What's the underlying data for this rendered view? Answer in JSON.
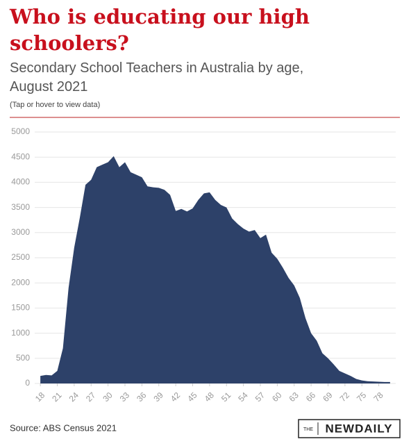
{
  "chart_data": {
    "type": "area",
    "title": "Who is educating our high schoolers?",
    "subtitle": "Secondary School Teachers in Australia by age, August 2021",
    "note": "(Tap or hover to view data)",
    "source": "Source: ABS Census 2021",
    "logo": [
      "THE",
      "NEWDAILY"
    ],
    "x": [
      18,
      19,
      20,
      21,
      22,
      23,
      24,
      25,
      26,
      27,
      28,
      29,
      30,
      31,
      32,
      33,
      34,
      35,
      36,
      37,
      38,
      39,
      40,
      41,
      42,
      43,
      44,
      45,
      46,
      47,
      48,
      49,
      50,
      51,
      52,
      53,
      54,
      55,
      56,
      57,
      58,
      59,
      60,
      61,
      62,
      63,
      64,
      65,
      66,
      67,
      68,
      69,
      70,
      71,
      72,
      73,
      74,
      75,
      76,
      77,
      78,
      79,
      80
    ],
    "series": [
      {
        "name": "Secondary School Teachers",
        "color": "#2d4169",
        "values": [
          150,
          170,
          160,
          250,
          700,
          1900,
          2700,
          3300,
          3950,
          4050,
          4300,
          4350,
          4400,
          4520,
          4300,
          4400,
          4200,
          4150,
          4100,
          3920,
          3900,
          3890,
          3850,
          3750,
          3430,
          3470,
          3420,
          3480,
          3650,
          3780,
          3800,
          3650,
          3550,
          3500,
          3280,
          3170,
          3080,
          3020,
          3050,
          2890,
          2960,
          2600,
          2480,
          2300,
          2100,
          1950,
          1700,
          1300,
          1000,
          850,
          600,
          500,
          380,
          250,
          200,
          150,
          90,
          60,
          45,
          40,
          35,
          30,
          30
        ]
      }
    ],
    "xlim": [
      17,
      81
    ],
    "xticks": [
      18,
      21,
      24,
      27,
      30,
      33,
      36,
      39,
      42,
      45,
      48,
      51,
      54,
      57,
      60,
      63,
      66,
      69,
      72,
      75,
      78
    ],
    "ylim": [
      0,
      5000
    ],
    "yticks": [
      0,
      500,
      1000,
      1500,
      2000,
      2500,
      3000,
      3500,
      4000,
      4500,
      5000
    ],
    "grid": true
  }
}
